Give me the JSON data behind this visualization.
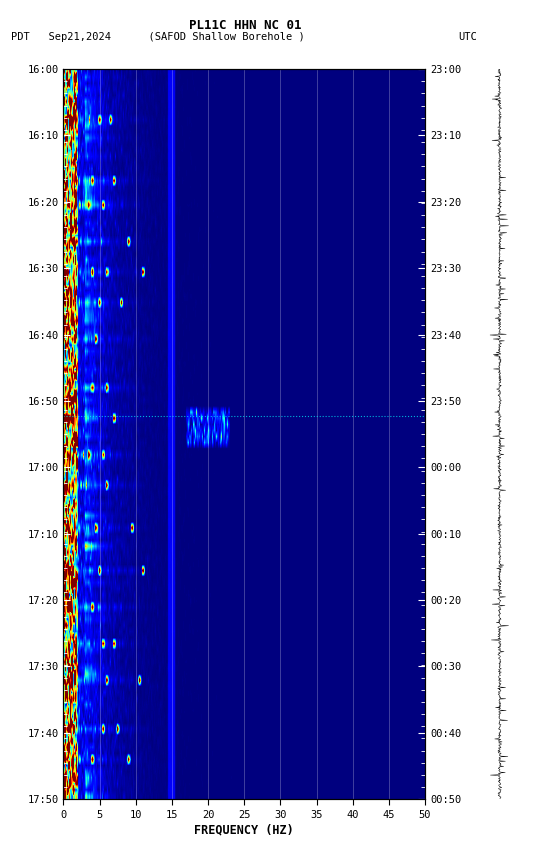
{
  "title_line1": "PL11C HHN NC 01",
  "title_line2_left": "PDT   Sep21,2024      (SAFOD Shallow Borehole )",
  "title_line2_right": "UTC",
  "xlabel": "FREQUENCY (HZ)",
  "yticks_left": [
    "16:00",
    "16:10",
    "16:20",
    "16:30",
    "16:40",
    "16:50",
    "17:00",
    "17:10",
    "17:20",
    "17:30",
    "17:40",
    "17:50"
  ],
  "yticks_right": [
    "23:00",
    "23:10",
    "23:20",
    "23:30",
    "23:40",
    "23:50",
    "00:00",
    "00:10",
    "00:20",
    "00:30",
    "00:40",
    "00:50"
  ],
  "xticks": [
    0,
    5,
    10,
    15,
    20,
    25,
    30,
    35,
    40,
    45,
    50
  ],
  "freq_min": 0,
  "freq_max": 50,
  "time_steps": 120,
  "freq_steps": 500,
  "background_color": "#ffffff",
  "fig_width": 5.52,
  "fig_height": 8.64,
  "dpi": 100,
  "colormap": "jet",
  "random_seed": 42
}
